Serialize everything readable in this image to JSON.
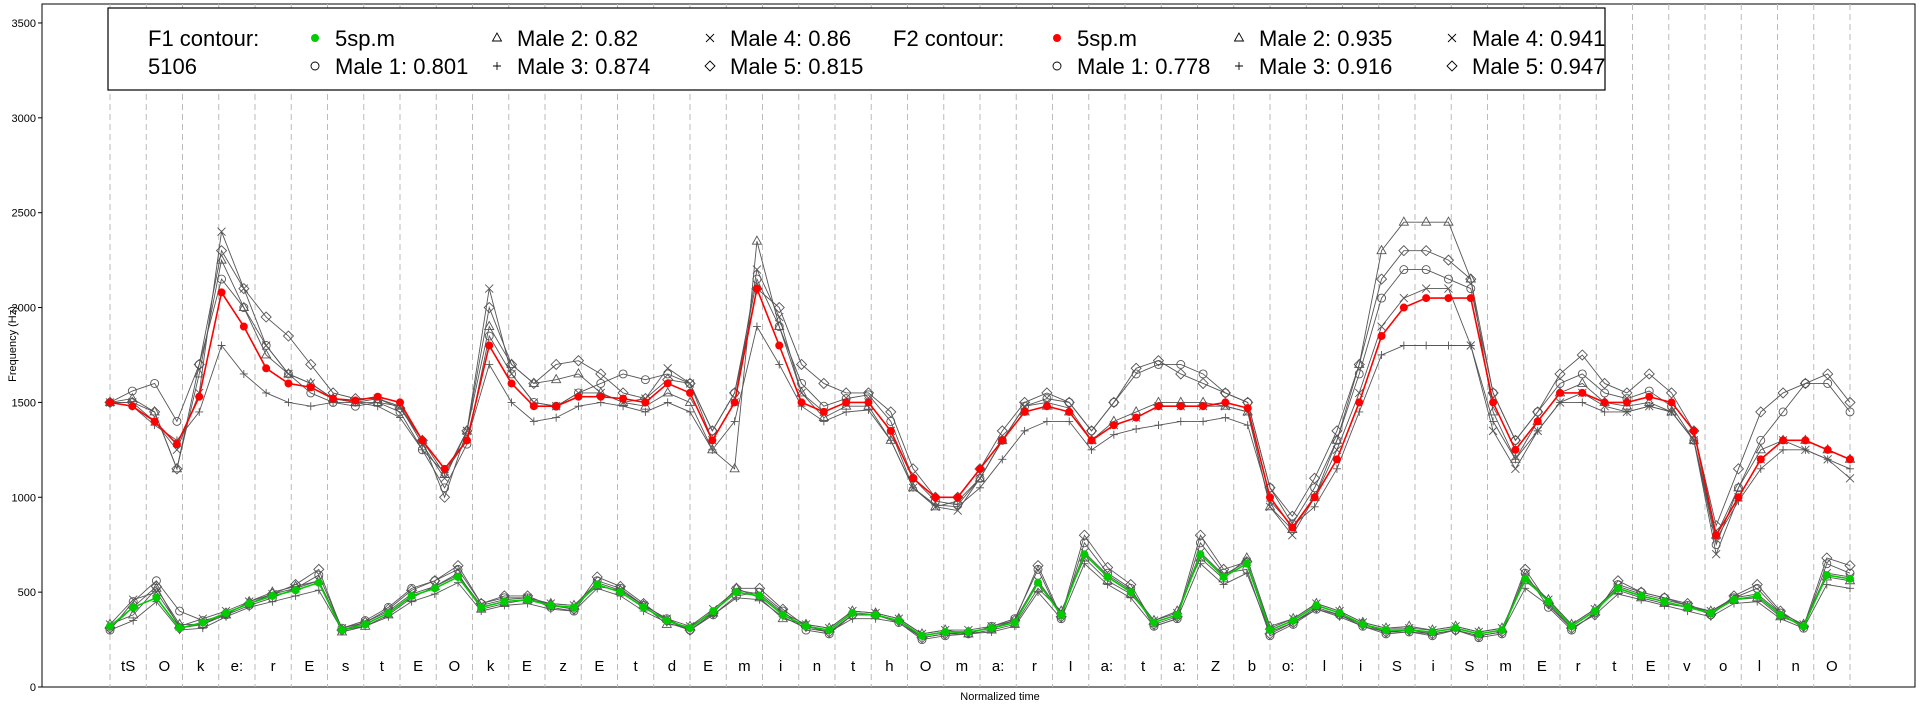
{
  "chart_data": {
    "type": "line",
    "xlabel": "Normalized time",
    "ylabel": "Frequency (Hz)",
    "ylim": [
      0,
      3600
    ],
    "yticks": [
      0,
      500,
      1000,
      1500,
      2000,
      2500,
      3000,
      3500
    ],
    "grid": "vertical dashed at phone boundaries",
    "segments": [
      "tS",
      "O",
      "k",
      "e:",
      "r",
      "E",
      "s",
      "t",
      "E",
      "O",
      "k",
      "E",
      "z",
      "E",
      "t",
      "d",
      "E",
      "m",
      "i",
      "n",
      "t",
      "h",
      "O",
      "m",
      "a:",
      "r",
      "I",
      "a:",
      "t",
      "a:",
      "Z",
      "b",
      "o:",
      "l",
      "i",
      "S",
      "i",
      "S",
      "m",
      "E",
      "r",
      "t",
      "E",
      "v",
      "o",
      "l",
      "n",
      "O"
    ],
    "legend": {
      "placement": "top-left",
      "f1_title": "F1 contour:",
      "f1_id": "5106",
      "f2_title": "F2 contour:",
      "f1_entries": [
        {
          "symbol": "filled-circle",
          "label": "5sp.m",
          "color": "#00cc00"
        },
        {
          "symbol": "circle",
          "label": "Male 1: 0.801"
        },
        {
          "symbol": "triangle",
          "label": "Male 2: 0.82"
        },
        {
          "symbol": "plus",
          "label": "Male 3: 0.874"
        },
        {
          "symbol": "cross",
          "label": "Male 4: 0.86"
        },
        {
          "symbol": "diamond",
          "label": "Male 5: 0.815"
        }
      ],
      "f2_entries": [
        {
          "symbol": "filled-circle",
          "label": "5sp.m",
          "color": "#ff0000"
        },
        {
          "symbol": "circle",
          "label": "Male 1: 0.778"
        },
        {
          "symbol": "triangle",
          "label": "Male 2: 0.935"
        },
        {
          "symbol": "plus",
          "label": "Male 3: 0.916"
        },
        {
          "symbol": "cross",
          "label": "Male 4: 0.941"
        },
        {
          "symbol": "diamond",
          "label": "Male 5: 0.947"
        }
      ]
    },
    "colors": {
      "f1_mean": "#00cc00",
      "f2_mean": "#ff0000",
      "speakers": "#555555"
    },
    "f1_mean": [
      320,
      420,
      470,
      310,
      340,
      390,
      440,
      480,
      510,
      550,
      300,
      330,
      390,
      480,
      520,
      580,
      420,
      450,
      460,
      430,
      420,
      540,
      500,
      420,
      350,
      310,
      400,
      500,
      480,
      380,
      320,
      300,
      390,
      380,
      350,
      270,
      290,
      290,
      310,
      340,
      550,
      380,
      700,
      580,
      500,
      340,
      380,
      700,
      580,
      650,
      300,
      350,
      430,
      390,
      330,
      300,
      300,
      290,
      310,
      280,
      300,
      570,
      450,
      320,
      400,
      520,
      480,
      450,
      420,
      390,
      460,
      480,
      380,
      320,
      590,
      570
    ],
    "f2_mean": [
      1500,
      1480,
      1400,
      1280,
      1530,
      2080,
      1900,
      1680,
      1600,
      1580,
      1520,
      1510,
      1530,
      1500,
      1300,
      1150,
      1300,
      1800,
      1600,
      1480,
      1480,
      1530,
      1530,
      1520,
      1500,
      1600,
      1550,
      1300,
      1500,
      2100,
      1800,
      1500,
      1450,
      1500,
      1500,
      1350,
      1100,
      1000,
      1000,
      1150,
      1300,
      1450,
      1480,
      1450,
      1300,
      1380,
      1420,
      1480,
      1480,
      1480,
      1500,
      1470,
      1000,
      840,
      1000,
      1200,
      1500,
      1850,
      2000,
      2050,
      2050,
      2050,
      1500,
      1250,
      1400,
      1550,
      1550,
      1500,
      1500,
      1530,
      1500,
      1350,
      800,
      1000,
      1200,
      1300,
      1300,
      1250,
      1200
    ],
    "f1_speakers": [
      {
        "name": "Male 1",
        "symbol": "circle",
        "values": [
          300,
          450,
          560,
          400,
          350,
          380,
          430,
          470,
          520,
          590,
          310,
          350,
          420,
          520,
          560,
          620,
          440,
          470,
          470,
          420,
          400,
          560,
          520,
          430,
          360,
          300,
          380,
          480,
          500,
          400,
          300,
          280,
          380,
          380,
          340,
          250,
          270,
          280,
          320,
          360,
          620,
          360,
          760,
          600,
          520,
          320,
          360,
          760,
          600,
          620,
          270,
          330,
          410,
          380,
          320,
          280,
          290,
          270,
          300,
          260,
          280,
          600,
          420,
          300,
          390,
          540,
          500,
          470,
          430,
          380,
          470,
          520,
          390,
          310,
          650,
          600
        ]
      },
      {
        "name": "Male 2",
        "symbol": "triangle",
        "values": [
          330,
          380,
          520,
          330,
          330,
          380,
          450,
          500,
          530,
          560,
          290,
          320,
          380,
          470,
          530,
          600,
          410,
          440,
          460,
          440,
          430,
          530,
          510,
          430,
          330,
          320,
          390,
          520,
          470,
          360,
          330,
          310,
          400,
          390,
          360,
          280,
          300,
          280,
          300,
          330,
          520,
          400,
          680,
          560,
          490,
          350,
          400,
          680,
          570,
          680,
          320,
          360,
          440,
          400,
          340,
          310,
          320,
          300,
          320,
          290,
          310,
          560,
          460,
          330,
          410,
          510,
          470,
          440,
          420,
          400,
          460,
          470,
          370,
          330,
          580,
          560
        ]
      },
      {
        "name": "Male 3",
        "symbol": "plus",
        "values": [
          300,
          350,
          450,
          300,
          310,
          370,
          420,
          450,
          480,
          510,
          300,
          320,
          370,
          450,
          490,
          550,
          400,
          430,
          440,
          410,
          400,
          520,
          480,
          400,
          340,
          300,
          380,
          470,
          460,
          370,
          310,
          290,
          360,
          360,
          340,
          260,
          280,
          280,
          290,
          320,
          500,
          360,
          650,
          540,
          470,
          320,
          360,
          650,
          540,
          600,
          290,
          340,
          410,
          370,
          320,
          290,
          290,
          280,
          300,
          270,
          290,
          520,
          430,
          310,
          380,
          490,
          460,
          430,
          400,
          370,
          440,
          450,
          360,
          310,
          540,
          520
        ]
      },
      {
        "name": "Male 4",
        "symbol": "cross",
        "values": [
          330,
          460,
          500,
          320,
          360,
          400,
          450,
          490,
          520,
          560,
          310,
          340,
          400,
          490,
          530,
          590,
          430,
          460,
          470,
          440,
          430,
          550,
          510,
          430,
          360,
          320,
          410,
          510,
          490,
          390,
          330,
          310,
          400,
          390,
          360,
          280,
          300,
          300,
          320,
          350,
          560,
          390,
          710,
          590,
          510,
          350,
          390,
          710,
          590,
          660,
          310,
          360,
          440,
          400,
          340,
          310,
          310,
          300,
          320,
          290,
          310,
          580,
          460,
          330,
          410,
          530,
          490,
          460,
          430,
          400,
          470,
          490,
          390,
          330,
          600,
          580
        ]
      },
      {
        "name": "Male 5",
        "symbol": "diamond",
        "values": [
          310,
          420,
          530,
          310,
          330,
          390,
          440,
          490,
          540,
          620,
          300,
          340,
          410,
          510,
          560,
          640,
          440,
          480,
          480,
          430,
          410,
          580,
          530,
          440,
          350,
          300,
          390,
          520,
          520,
          410,
          320,
          290,
          380,
          380,
          350,
          260,
          280,
          290,
          310,
          350,
          640,
          370,
          800,
          630,
          540,
          330,
          370,
          800,
          620,
          660,
          280,
          340,
          420,
          380,
          330,
          290,
          300,
          280,
          300,
          270,
          290,
          620,
          440,
          310,
          380,
          560,
          500,
          470,
          440,
          380,
          480,
          540,
          400,
          320,
          680,
          640
        ]
      }
    ],
    "f2_speakers": [
      {
        "name": "Male 1",
        "symbol": "circle",
        "values": [
          1500,
          1560,
          1600,
          1400,
          1700,
          2150,
          2000,
          1800,
          1650,
          1550,
          1500,
          1480,
          1500,
          1450,
          1250,
          1050,
          1280,
          1850,
          1650,
          1500,
          1480,
          1550,
          1600,
          1650,
          1620,
          1650,
          1600,
          1350,
          1550,
          2150,
          1900,
          1600,
          1480,
          1520,
          1540,
          1400,
          1100,
          980,
          960,
          1100,
          1300,
          1480,
          1520,
          1500,
          1350,
          1500,
          1650,
          1700,
          1700,
          1650,
          1550,
          1500,
          1050,
          860,
          1050,
          1300,
          1650,
          2050,
          2200,
          2200,
          2150,
          2100,
          1550,
          1300,
          1450,
          1600,
          1650,
          1550,
          1520,
          1560,
          1480,
          1300,
          750,
          1050,
          1300,
          1450,
          1600,
          1600,
          1450
        ]
      },
      {
        "name": "Male 2",
        "symbol": "triangle",
        "values": [
          1500,
          1520,
          1450,
          1150,
          1650,
          2250,
          2000,
          1750,
          1650,
          1600,
          1520,
          1500,
          1500,
          1480,
          1300,
          1120,
          1350,
          1900,
          1700,
          1600,
          1620,
          1650,
          1550,
          1500,
          1480,
          1550,
          1500,
          1250,
          1150,
          2350,
          1900,
          1550,
          1420,
          1480,
          1480,
          1300,
          1050,
          950,
          980,
          1100,
          1300,
          1450,
          1480,
          1450,
          1300,
          1400,
          1450,
          1500,
          1500,
          1500,
          1480,
          1450,
          950,
          830,
          1000,
          1300,
          1700,
          2300,
          2450,
          2450,
          2450,
          2150,
          1450,
          1200,
          1400,
          1550,
          1600,
          1500,
          1480,
          1500,
          1450,
          1300,
          800,
          1050,
          1250,
          1300,
          1300,
          1250,
          1200
        ]
      },
      {
        "name": "Male 3",
        "symbol": "plus",
        "values": [
          1500,
          1480,
          1380,
          1300,
          1450,
          1800,
          1650,
          1550,
          1500,
          1480,
          1500,
          1500,
          1480,
          1420,
          1250,
          1130,
          1300,
          1700,
          1500,
          1400,
          1420,
          1480,
          1500,
          1480,
          1450,
          1500,
          1450,
          1250,
          1400,
          1900,
          1700,
          1480,
          1400,
          1450,
          1460,
          1300,
          1050,
          960,
          950,
          1050,
          1200,
          1350,
          1400,
          1400,
          1250,
          1330,
          1360,
          1380,
          1400,
          1400,
          1420,
          1380,
          980,
          850,
          950,
          1150,
          1450,
          1750,
          1800,
          1800,
          1800,
          1800,
          1400,
          1200,
          1350,
          1500,
          1500,
          1450,
          1450,
          1480,
          1450,
          1300,
          780,
          980,
          1150,
          1250,
          1250,
          1200,
          1150
        ]
      },
      {
        "name": "Male 4",
        "symbol": "cross",
        "values": [
          1500,
          1500,
          1400,
          1250,
          1550,
          2400,
          2100,
          1800,
          1650,
          1600,
          1520,
          1500,
          1520,
          1480,
          1280,
          1100,
          1350,
          2100,
          1650,
          1500,
          1480,
          1550,
          1550,
          1500,
          1520,
          1680,
          1600,
          1300,
          1500,
          2200,
          1950,
          1550,
          1450,
          1500,
          1500,
          1350,
          1050,
          950,
          930,
          1100,
          1300,
          1480,
          1500,
          1470,
          1300,
          1380,
          1420,
          1480,
          1480,
          1480,
          1480,
          1450,
          950,
          800,
          1000,
          1250,
          1550,
          1900,
          2050,
          2100,
          2100,
          1800,
          1350,
          1150,
          1350,
          1500,
          1550,
          1480,
          1450,
          1480,
          1450,
          1300,
          700,
          1000,
          1200,
          1300,
          1250,
          1200,
          1100
        ]
      },
      {
        "name": "Male 5",
        "symbol": "diamond",
        "values": [
          1500,
          1500,
          1450,
          1150,
          1700,
          2300,
          2100,
          1950,
          1850,
          1700,
          1550,
          1520,
          1520,
          1470,
          1300,
          1000,
          1350,
          2000,
          1700,
          1600,
          1700,
          1720,
          1650,
          1550,
          1520,
          1620,
          1600,
          1350,
          1550,
          2100,
          2000,
          1700,
          1600,
          1550,
          1550,
          1450,
          1150,
          1000,
          1000,
          1150,
          1350,
          1500,
          1550,
          1500,
          1350,
          1500,
          1680,
          1720,
          1650,
          1600,
          1550,
          1500,
          1050,
          900,
          1100,
          1350,
          1700,
          2150,
          2300,
          2300,
          2250,
          2150,
          1550,
          1300,
          1450,
          1650,
          1750,
          1600,
          1550,
          1650,
          1550,
          1350,
          850,
          1150,
          1450,
          1550,
          1600,
          1650,
          1500
        ]
      }
    ]
  }
}
